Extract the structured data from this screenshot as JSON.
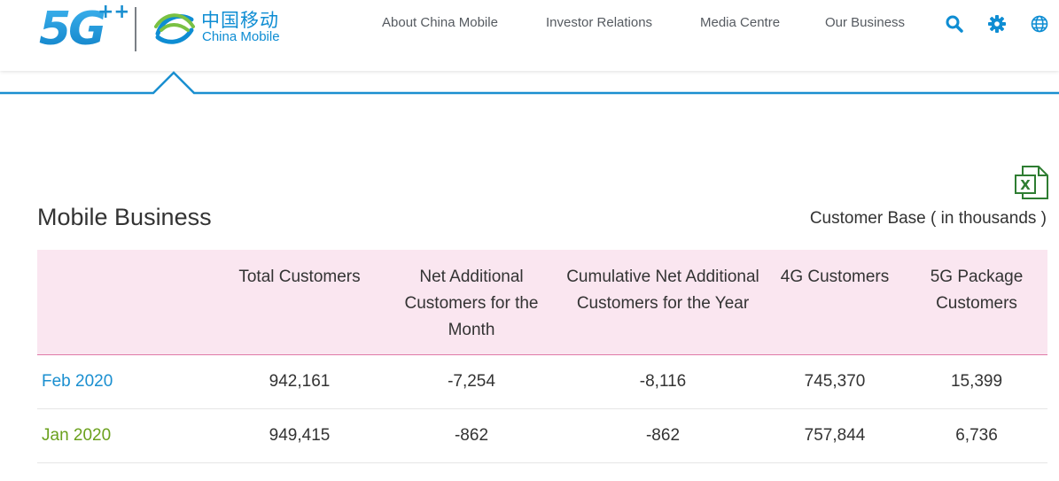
{
  "header": {
    "logo_5g": "5G",
    "logo_cn": "中国移动",
    "logo_en": "China Mobile",
    "nav": [
      {
        "label": "About China Mobile"
      },
      {
        "label": "Investor Relations"
      },
      {
        "label": "Media Centre"
      },
      {
        "label": "Our Business"
      }
    ],
    "icons": [
      "search-icon",
      "gear-icon",
      "globe-icon"
    ],
    "accent_color": "#0e8dd3"
  },
  "section": {
    "title": "Mobile Business",
    "unit": "Customer Base ( in thousands )",
    "download_icon": "excel-icon"
  },
  "table": {
    "columns": [
      "",
      "Total Customers",
      "Net Additional Customers for the Month",
      "Cumulative Net Additional Customers for the Year",
      "4G Customers",
      "5G Package Customers"
    ],
    "rows": [
      {
        "month": "Feb 2020",
        "color": "#1a8fd0",
        "total": "942,161",
        "net_month": "-7,254",
        "cumulative": "-8,116",
        "four_g": "745,370",
        "five_g": "15,399"
      },
      {
        "month": "Jan 2020",
        "color": "#6aa01c",
        "total": "949,415",
        "net_month": "-862",
        "cumulative": "-862",
        "four_g": "757,844",
        "five_g": "6,736"
      }
    ]
  }
}
